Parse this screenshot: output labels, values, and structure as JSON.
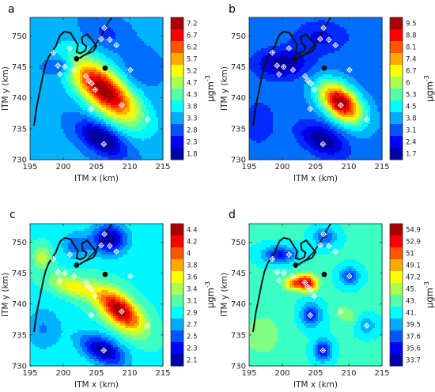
{
  "figure": {
    "unit_label": "μgm",
    "unit_exponent": "-3"
  },
  "chart_data": [
    {
      "type": "heatmap",
      "panel": "a",
      "xlabel": "ITM x (km)",
      "ylabel": "ITM y (km)",
      "xlim": [
        195,
        215
      ],
      "ylim": [
        730,
        753
      ],
      "xticks": [
        195,
        200,
        205,
        210,
        215
      ],
      "yticks": [
        730,
        735,
        740,
        745,
        750
      ],
      "colorbar_ticks": [
        "7.2",
        "6.7",
        "6.2",
        "5.7",
        "5.2",
        "4.7",
        "4.3",
        "3.8",
        "3.3",
        "2.8",
        "2.3",
        "1.8"
      ],
      "colorbar_unit": "μgm-3",
      "base_value": 3.3,
      "hotspots": [
        {
          "x": 206.2,
          "y": 741.2,
          "amplitude": 3.9,
          "sx": 4.6,
          "sy": 2.0,
          "angle": -45
        },
        {
          "x": 205.8,
          "y": 733.3,
          "amplitude": -1.7,
          "sx": 2.8,
          "sy": 1.4,
          "angle": -35
        },
        {
          "x": 199.6,
          "y": 745.2,
          "amplitude": -0.9,
          "sx": 1.5,
          "sy": 1.1,
          "angle": 0
        },
        {
          "x": 206.5,
          "y": 750.5,
          "amplitude": -0.5,
          "sx": 2.5,
          "sy": 1.6,
          "angle": -30
        },
        {
          "x": 211.5,
          "y": 744.5,
          "amplitude": -0.4,
          "sx": 2.0,
          "sy": 2.0,
          "angle": 0
        }
      ],
      "monitors": [
        {
          "x": 206.2,
          "y": 751.3
        },
        {
          "x": 207.0,
          "y": 749.4
        },
        {
          "x": 208.0,
          "y": 748.5
        },
        {
          "x": 205.7,
          "y": 749.5
        },
        {
          "x": 201.0,
          "y": 748.0
        },
        {
          "x": 198.5,
          "y": 747.3
        },
        {
          "x": 199.2,
          "y": 745.2
        },
        {
          "x": 200.2,
          "y": 745.0
        },
        {
          "x": 199.5,
          "y": 743.8
        },
        {
          "x": 201.6,
          "y": 744.5
        },
        {
          "x": 203.4,
          "y": 743.5
        },
        {
          "x": 203.8,
          "y": 742.8
        },
        {
          "x": 204.3,
          "y": 742.3
        },
        {
          "x": 204.8,
          "y": 741.3
        },
        {
          "x": 210.1,
          "y": 744.5
        },
        {
          "x": 208.8,
          "y": 738.8
        },
        {
          "x": 204.2,
          "y": 738.2
        },
        {
          "x": 212.7,
          "y": 736.5
        },
        {
          "x": 206.1,
          "y": 732.5
        }
      ],
      "sources": [
        {
          "x": 202.0,
          "y": 746.3
        },
        {
          "x": 206.3,
          "y": 744.8
        }
      ]
    },
    {
      "type": "heatmap",
      "panel": "b",
      "xlabel": "ITM x (km)",
      "ylabel": "ITM y (km)",
      "xlim": [
        195,
        215
      ],
      "ylim": [
        730,
        753
      ],
      "xticks": [
        195,
        200,
        205,
        210,
        215
      ],
      "yticks": [
        730,
        735,
        740,
        745,
        750
      ],
      "colorbar_ticks": [
        "9.5",
        "8.8",
        "8.1",
        "7.4",
        "6.7",
        "6",
        "5.3",
        "4.5",
        "3.8",
        "3.1",
        "2.4",
        "1.7"
      ],
      "colorbar_unit": "μgm-3",
      "base_value": 3.6,
      "hotspots": [
        {
          "x": 208.8,
          "y": 739.2,
          "amplitude": 5.9,
          "sx": 2.7,
          "sy": 1.6,
          "angle": -45
        },
        {
          "x": 206.0,
          "y": 733.2,
          "amplitude": -1.9,
          "sx": 2.6,
          "sy": 1.5,
          "angle": -30
        },
        {
          "x": 200.0,
          "y": 745.5,
          "amplitude": -1.8,
          "sx": 2.8,
          "sy": 1.6,
          "angle": 0
        },
        {
          "x": 205.8,
          "y": 749.8,
          "amplitude": -1.0,
          "sx": 2.8,
          "sy": 1.8,
          "angle": 0
        },
        {
          "x": 196.5,
          "y": 736.0,
          "amplitude": -0.6,
          "sx": 2.0,
          "sy": 3.0,
          "angle": 0
        }
      ],
      "monitors": [
        {
          "x": 206.2,
          "y": 751.3
        },
        {
          "x": 207.0,
          "y": 749.4
        },
        {
          "x": 208.0,
          "y": 748.5
        },
        {
          "x": 205.7,
          "y": 749.5
        },
        {
          "x": 201.0,
          "y": 748.0
        },
        {
          "x": 198.5,
          "y": 747.3
        },
        {
          "x": 199.2,
          "y": 745.2
        },
        {
          "x": 200.2,
          "y": 745.0
        },
        {
          "x": 199.5,
          "y": 743.8
        },
        {
          "x": 201.6,
          "y": 744.5
        },
        {
          "x": 203.4,
          "y": 743.5
        },
        {
          "x": 203.8,
          "y": 742.8
        },
        {
          "x": 204.3,
          "y": 742.3
        },
        {
          "x": 204.8,
          "y": 741.3
        },
        {
          "x": 210.1,
          "y": 744.5
        },
        {
          "x": 208.8,
          "y": 738.8
        },
        {
          "x": 204.2,
          "y": 738.2
        },
        {
          "x": 212.7,
          "y": 736.5
        },
        {
          "x": 206.1,
          "y": 732.5
        }
      ],
      "sources": [
        {
          "x": 202.0,
          "y": 746.3
        },
        {
          "x": 206.3,
          "y": 744.8
        }
      ]
    },
    {
      "type": "heatmap",
      "panel": "c",
      "xlabel": "ITM x (km)",
      "ylabel": "ITM y (km)",
      "xlim": [
        195,
        215
      ],
      "ylim": [
        730,
        753
      ],
      "xticks": [
        195,
        200,
        205,
        210,
        215
      ],
      "yticks": [
        730,
        735,
        740,
        745,
        750
      ],
      "colorbar_ticks": [
        "4.4",
        "4.2",
        "4",
        "3.8",
        "3.6",
        "3.4",
        "3.1",
        "2.9",
        "2.7",
        "2.5",
        "2.3",
        "2.1"
      ],
      "colorbar_unit": "μgm-3",
      "base_value": 3.0,
      "hotspots": [
        {
          "x": 208.5,
          "y": 739.0,
          "amplitude": 1.35,
          "sx": 3.0,
          "sy": 1.5,
          "angle": -45
        },
        {
          "x": 201.5,
          "y": 742.8,
          "amplitude": 0.55,
          "sx": 2.6,
          "sy": 1.1,
          "angle": -20
        },
        {
          "x": 206.0,
          "y": 732.5,
          "amplitude": -0.85,
          "sx": 2.6,
          "sy": 1.4,
          "angle": -30
        },
        {
          "x": 207.0,
          "y": 750.5,
          "amplitude": -0.85,
          "sx": 1.8,
          "sy": 1.7,
          "angle": 0
        },
        {
          "x": 202.0,
          "y": 749.5,
          "amplitude": -0.4,
          "sx": 1.5,
          "sy": 1.5,
          "angle": 0
        },
        {
          "x": 196.8,
          "y": 747.5,
          "amplitude": 0.4,
          "sx": 1.0,
          "sy": 1.3,
          "angle": 0
        },
        {
          "x": 197.0,
          "y": 736.0,
          "amplitude": -0.3,
          "sx": 2.0,
          "sy": 2.5,
          "angle": 0
        }
      ],
      "monitors": [
        {
          "x": 206.2,
          "y": 751.3
        },
        {
          "x": 207.0,
          "y": 749.4
        },
        {
          "x": 208.0,
          "y": 748.5
        },
        {
          "x": 205.7,
          "y": 749.5
        },
        {
          "x": 201.0,
          "y": 748.0
        },
        {
          "x": 198.5,
          "y": 747.3
        },
        {
          "x": 199.2,
          "y": 745.2
        },
        {
          "x": 200.2,
          "y": 745.0
        },
        {
          "x": 199.5,
          "y": 743.8
        },
        {
          "x": 201.6,
          "y": 744.5
        },
        {
          "x": 203.4,
          "y": 743.5
        },
        {
          "x": 203.8,
          "y": 742.8
        },
        {
          "x": 204.3,
          "y": 742.3
        },
        {
          "x": 204.8,
          "y": 741.3
        },
        {
          "x": 210.1,
          "y": 744.5
        },
        {
          "x": 208.8,
          "y": 738.8
        },
        {
          "x": 204.2,
          "y": 738.2
        },
        {
          "x": 212.7,
          "y": 736.5
        },
        {
          "x": 206.1,
          "y": 732.5
        }
      ],
      "sources": [
        {
          "x": 202.0,
          "y": 746.3
        },
        {
          "x": 206.3,
          "y": 744.8
        }
      ]
    },
    {
      "type": "heatmap",
      "panel": "d",
      "xlabel": "ITM x (km)",
      "ylabel": "ITM y (km)",
      "xlim": [
        195,
        215
      ],
      "ylim": [
        730,
        753
      ],
      "xticks": [
        195,
        200,
        205,
        210,
        215
      ],
      "yticks": [
        730,
        735,
        740,
        745,
        750
      ],
      "colorbar_ticks": [
        "54.9",
        "52.9",
        "51",
        "49.1",
        "47.2",
        "45.",
        "43.",
        "41.",
        "39.5",
        "37.6",
        "35.6",
        "33.7"
      ],
      "colorbar_unit": "μgm-3",
      "base_value": 42.3,
      "hotspots": [
        {
          "x": 203.6,
          "y": 743.7,
          "amplitude": 8.5,
          "sx": 1.1,
          "sy": 0.9,
          "angle": 0
        },
        {
          "x": 201.6,
          "y": 743.3,
          "amplitude": 6.5,
          "sx": 1.0,
          "sy": 0.8,
          "angle": 0
        },
        {
          "x": 204.2,
          "y": 742.8,
          "amplitude": 4.0,
          "sx": 0.9,
          "sy": 0.7,
          "angle": 0
        },
        {
          "x": 209.5,
          "y": 738.3,
          "amplitude": 2.5,
          "sx": 1.3,
          "sy": 0.9,
          "angle": -40
        },
        {
          "x": 204.3,
          "y": 738.2,
          "amplitude": -5.5,
          "sx": 1.1,
          "sy": 1.3,
          "angle": 0
        },
        {
          "x": 206.1,
          "y": 732.5,
          "amplitude": -6.5,
          "sx": 0.9,
          "sy": 1.2,
          "angle": 0
        },
        {
          "x": 210.1,
          "y": 744.5,
          "amplitude": -5.0,
          "sx": 1.0,
          "sy": 1.0,
          "angle": 0
        },
        {
          "x": 212.7,
          "y": 736.5,
          "amplitude": -3.0,
          "sx": 1.0,
          "sy": 1.0,
          "angle": 0
        },
        {
          "x": 199.6,
          "y": 748.0,
          "amplitude": -6.0,
          "sx": 1.8,
          "sy": 0.9,
          "angle": 0
        },
        {
          "x": 206.4,
          "y": 750.8,
          "amplitude": -4.5,
          "sx": 1.2,
          "sy": 1.0,
          "angle": 0
        },
        {
          "x": 197.0,
          "y": 735.0,
          "amplitude": 2.0,
          "sx": 2.5,
          "sy": 3.0,
          "angle": 0
        }
      ],
      "monitors": [
        {
          "x": 206.2,
          "y": 751.3
        },
        {
          "x": 207.0,
          "y": 749.4
        },
        {
          "x": 208.0,
          "y": 748.5
        },
        {
          "x": 205.7,
          "y": 749.5
        },
        {
          "x": 201.0,
          "y": 748.0
        },
        {
          "x": 198.5,
          "y": 747.3
        },
        {
          "x": 199.2,
          "y": 745.2
        },
        {
          "x": 200.2,
          "y": 745.0
        },
        {
          "x": 199.5,
          "y": 743.8
        },
        {
          "x": 201.6,
          "y": 744.5
        },
        {
          "x": 203.4,
          "y": 743.5
        },
        {
          "x": 203.8,
          "y": 742.8
        },
        {
          "x": 204.3,
          "y": 742.3
        },
        {
          "x": 204.8,
          "y": 741.3
        },
        {
          "x": 210.1,
          "y": 744.5
        },
        {
          "x": 208.8,
          "y": 738.8
        },
        {
          "x": 204.2,
          "y": 738.2
        },
        {
          "x": 212.7,
          "y": 736.5
        },
        {
          "x": 206.1,
          "y": 732.5
        }
      ],
      "sources": [
        {
          "x": 202.0,
          "y": 746.3
        },
        {
          "x": 206.3,
          "y": 744.8
        }
      ]
    }
  ]
}
